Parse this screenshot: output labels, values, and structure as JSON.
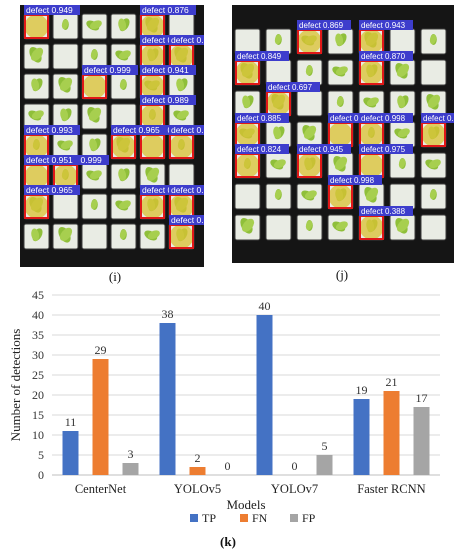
{
  "panels": {
    "i": {
      "caption": "(i)",
      "detections": [
        {
          "label": "defect 0.949"
        },
        {
          "label": "defect 0.876"
        },
        {
          "label": "defect 0.999"
        },
        {
          "label": "defect 0.575"
        },
        {
          "label": "defect 0.999"
        },
        {
          "label": "defect 0.941"
        },
        {
          "label": "defect 0.989"
        },
        {
          "label": "defect 0.993"
        },
        {
          "label": "defect 0.999"
        },
        {
          "label": "defect 0.965"
        },
        {
          "label": "defect 0.999"
        },
        {
          "label": "defect 0.999"
        },
        {
          "label": "defect 0.951"
        },
        {
          "label": "defect 0.965"
        },
        {
          "label": "defect 0.931"
        },
        {
          "label": "defect 0.999"
        },
        {
          "label": "defect 0.999"
        }
      ]
    },
    "j": {
      "caption": "(j)",
      "detections": [
        {
          "label": "defect 0.869"
        },
        {
          "label": "defect 0.943"
        },
        {
          "label": "defect 0.849"
        },
        {
          "label": "defect 0.870"
        },
        {
          "label": "defect 0.697"
        },
        {
          "label": "defect 0.885"
        },
        {
          "label": "defect 0.725"
        },
        {
          "label": "defect 0.998"
        },
        {
          "label": "defect 0.600"
        },
        {
          "label": "defect 0.824"
        },
        {
          "label": "defect 0.945"
        },
        {
          "label": "defect 0.975"
        },
        {
          "label": "defect 0.998"
        },
        {
          "label": "defect 0.388"
        }
      ]
    },
    "k": {
      "caption": "(k)"
    }
  },
  "colors": {
    "TP": "#4472C4",
    "FN": "#ED7D31",
    "FP": "#A5A5A5",
    "box": "#e01818",
    "label_bg": "#3d3dcc",
    "grid": "#d9d9d9"
  },
  "chart_data": {
    "type": "bar",
    "categories": [
      "CenterNet",
      "YOLOv5",
      "YOLOv7",
      "Faster RCNN"
    ],
    "series": [
      {
        "name": "TP",
        "values": [
          11,
          38,
          40,
          19
        ]
      },
      {
        "name": "FN",
        "values": [
          29,
          2,
          0,
          21
        ]
      },
      {
        "name": "FP",
        "values": [
          3,
          0,
          5,
          17
        ]
      }
    ],
    "xlabel": "Models",
    "ylabel": "Number of detections",
    "ylim": [
      0,
      45
    ],
    "yticks": [
      0,
      5,
      10,
      15,
      20,
      25,
      30,
      35,
      40,
      45
    ],
    "grid": true,
    "legend": "bottom",
    "data_labels": true
  }
}
